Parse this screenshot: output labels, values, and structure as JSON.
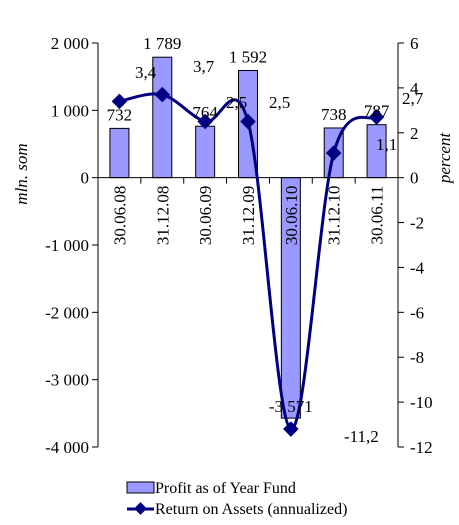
{
  "chart_data": {
    "type": "bar+line",
    "categories": [
      "30.06.08",
      "31.12.08",
      "30.06.09",
      "31.12.09",
      "30.06.10",
      "31.12.10",
      "30.06.11"
    ],
    "bar_series": {
      "name": "Profit as of Year Fund",
      "values": [
        732,
        1789,
        764,
        1592,
        -3571,
        738,
        787
      ],
      "labels": [
        "732",
        "1 789",
        "764",
        "1 592",
        "-3 571",
        "738",
        "787"
      ],
      "color": "#9999ff",
      "edge_color": "#000000"
    },
    "line_series": {
      "name": "Return on Assets (annualized)",
      "values": [
        3.4,
        3.7,
        2.5,
        2.5,
        -11.2,
        1.1,
        2.7
      ],
      "labels": [
        "3,4",
        "3,7",
        "2,5",
        "2,5",
        "-11,2",
        "1,1",
        "2,7"
      ],
      "color": "#000080"
    },
    "y_left": {
      "label": "mln. som",
      "range": [
        -4000,
        2000
      ],
      "ticks": [
        2000,
        1000,
        0,
        -1000,
        -2000,
        -3000,
        -4000
      ],
      "tick_labels": [
        "2 000",
        "1 000",
        "0",
        "-1 000",
        "-2 000",
        "-3 000",
        "-4 000"
      ]
    },
    "y_right": {
      "label": "percent",
      "range": [
        -12,
        6
      ],
      "ticks": [
        6,
        4,
        2,
        0,
        -2,
        -4,
        -6,
        -8,
        -10,
        -12
      ],
      "tick_labels": [
        "6",
        "4",
        "2",
        "0",
        "-2",
        "-4",
        "-6",
        "-8",
        "-10",
        "-12"
      ]
    },
    "grid": false,
    "legend_position": "bottom"
  }
}
